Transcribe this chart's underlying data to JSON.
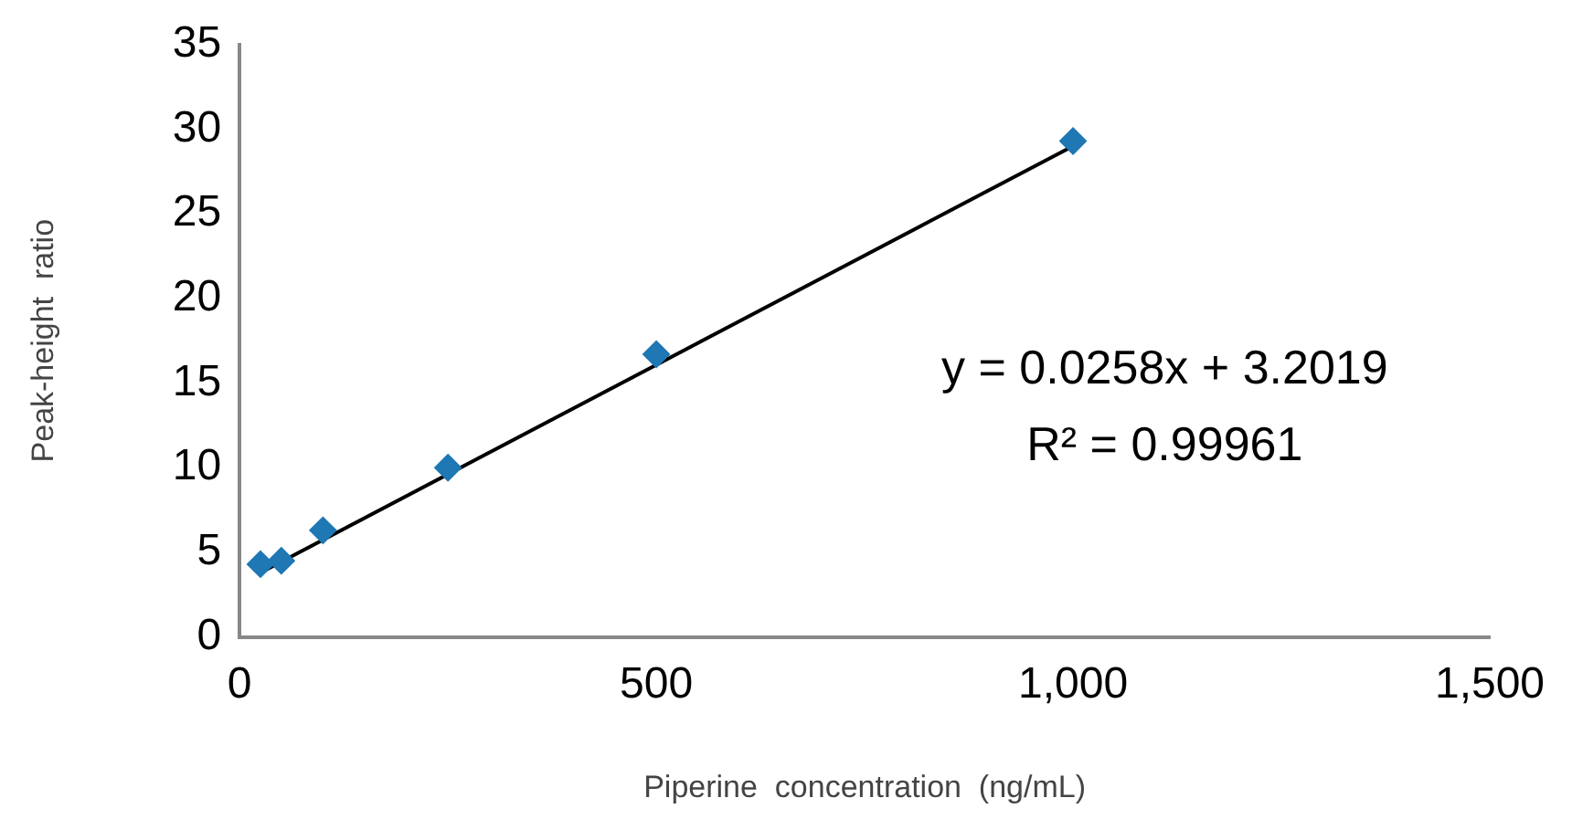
{
  "chart_data": {
    "type": "scatter",
    "xlabel": "Piperine  concentration  (ng/mL)",
    "ylabel": "Peak-height  ratio",
    "xlim": [
      0,
      1500
    ],
    "xticks": [
      0,
      500,
      {
        "value": 1000,
        "label": "1,000"
      },
      {
        "value": 1500,
        "label": "1,500"
      }
    ],
    "ylim": [
      0,
      35
    ],
    "yticks": [
      0,
      5,
      10,
      15,
      20,
      25,
      30,
      35
    ],
    "grid": false,
    "legend": false,
    "marker": "diamond",
    "series": [
      {
        "type": "scatter",
        "color": "#1f77b4",
        "x": [
          25,
          50,
          100,
          250,
          500,
          1000
        ],
        "values": [
          4.3,
          4.5,
          6.3,
          10.0,
          16.7,
          29.3
        ]
      },
      {
        "type": "line",
        "color": "#000000",
        "x": [
          25,
          1000
        ],
        "values": [
          3.8,
          29.0
        ],
        "marker": "none",
        "line_style": "solid"
      }
    ],
    "annotations": [
      "y = 0.0258x + 3.2019",
      "R² = 0.99961"
    ]
  }
}
